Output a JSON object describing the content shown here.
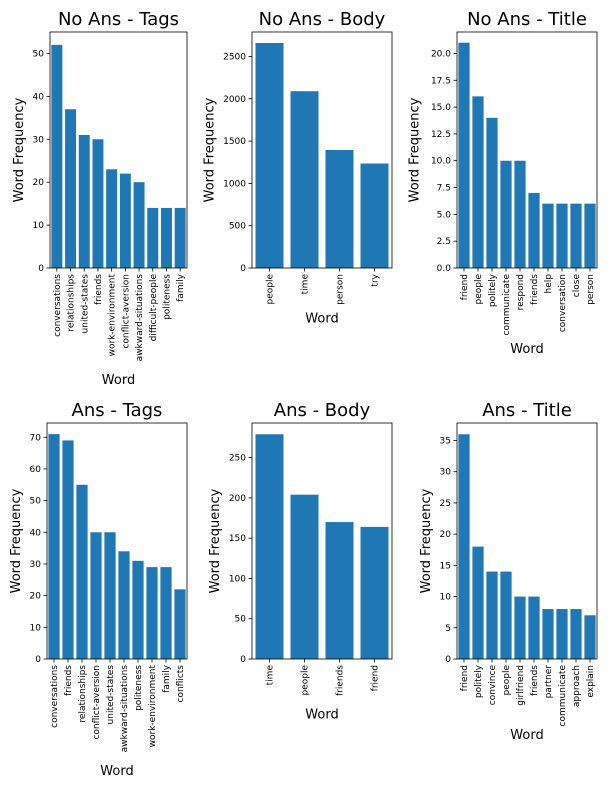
{
  "chart_data": [
    {
      "type": "bar",
      "title": "No Ans - Tags",
      "xlabel": "Word",
      "ylabel": "Word Frequency",
      "categories": [
        "conversations",
        "relationships",
        "united-states",
        "friends",
        "work-environment",
        "conflict-aversion",
        "awkward-situations",
        "difficult-people",
        "politeness",
        "family"
      ],
      "values": [
        52,
        37,
        31,
        30,
        23,
        22,
        20,
        14,
        14,
        14
      ],
      "ylim": [
        0,
        55
      ],
      "yticks": [
        0,
        10,
        20,
        30,
        40,
        50
      ],
      "color": "#1f77b4",
      "grid": false
    },
    {
      "type": "bar",
      "title": "No Ans - Body",
      "xlabel": "Word",
      "ylabel": "Word Frequency",
      "categories": [
        "people",
        "time",
        "person",
        "try"
      ],
      "values": [
        2660,
        2090,
        1395,
        1235
      ],
      "ylim": [
        0,
        2790
      ],
      "yticks": [
        0,
        500,
        1000,
        1500,
        2000,
        2500
      ],
      "color": "#1f77b4",
      "grid": false
    },
    {
      "type": "bar",
      "title": "No Ans - Title",
      "xlabel": "Word",
      "ylabel": "Word Frequency",
      "categories": [
        "friend",
        "people",
        "politely",
        "communicate",
        "respond",
        "friends",
        "help",
        "conversation",
        "close",
        "person"
      ],
      "values": [
        21,
        16,
        14,
        10,
        10,
        7,
        6,
        6,
        6,
        6
      ],
      "ylim": [
        0,
        22
      ],
      "yticks": [
        0.0,
        2.5,
        5.0,
        7.5,
        10.0,
        12.5,
        15.0,
        17.5,
        20.0
      ],
      "ytick_labels": [
        "0.0",
        "2.5",
        "5.0",
        "7.5",
        "10.0",
        "12.5",
        "15.0",
        "17.5",
        "20.0"
      ],
      "color": "#1f77b4",
      "grid": false
    },
    {
      "type": "bar",
      "title": "Ans - Tags",
      "xlabel": "Word",
      "ylabel": "Word Frequency",
      "categories": [
        "conversations",
        "friends",
        "relationships",
        "conflict-aversion",
        "united-states",
        "awkward-situations",
        "politeness",
        "work-environment",
        "family",
        "conflicts"
      ],
      "values": [
        71,
        69,
        55,
        40,
        40,
        34,
        31,
        29,
        29,
        22
      ],
      "ylim": [
        0,
        74.5
      ],
      "yticks": [
        0,
        10,
        20,
        30,
        40,
        50,
        60,
        70
      ],
      "color": "#1f77b4",
      "grid": false
    },
    {
      "type": "bar",
      "title": "Ans - Body",
      "xlabel": "Word",
      "ylabel": "Word Frequency",
      "categories": [
        "time",
        "people",
        "friends",
        "friend"
      ],
      "values": [
        279,
        204,
        170,
        164
      ],
      "ylim": [
        0,
        293
      ],
      "yticks": [
        0,
        50,
        100,
        150,
        200,
        250
      ],
      "color": "#1f77b4",
      "grid": false
    },
    {
      "type": "bar",
      "title": "Ans - Title",
      "xlabel": "Word",
      "ylabel": "Word Frequency",
      "categories": [
        "friend",
        "politely",
        "convince",
        "people",
        "girlfriend",
        "friends",
        "partner",
        "communicate",
        "approach",
        "explain"
      ],
      "values": [
        36,
        18,
        14,
        14,
        10,
        10,
        8,
        8,
        8,
        7
      ],
      "ylim": [
        0,
        37.8
      ],
      "yticks": [
        0,
        5,
        10,
        15,
        20,
        25,
        30,
        35
      ],
      "color": "#1f77b4",
      "grid": false
    }
  ]
}
